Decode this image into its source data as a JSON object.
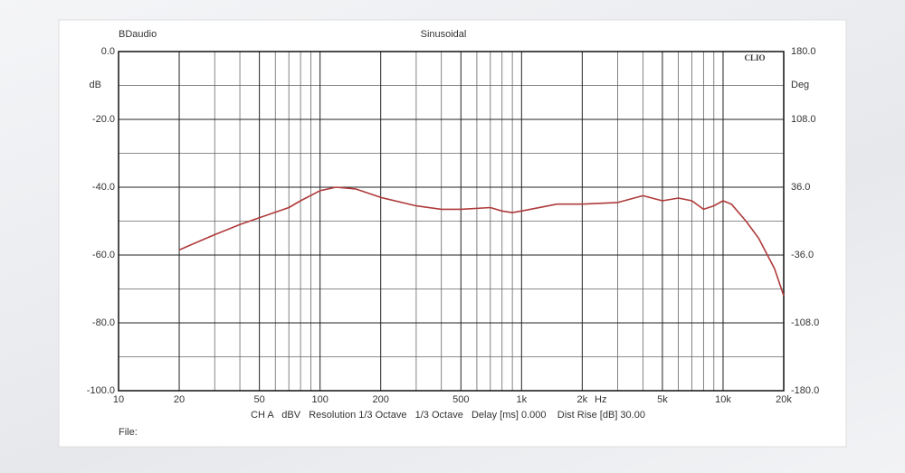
{
  "chart_data": {
    "type": "line",
    "title": "Sinusoidal",
    "brand": "BDaudio",
    "logo": "CLIO",
    "ylabel": "dB",
    "y2label": "Deg",
    "xlabel": "Hz",
    "footer": "CH A   dBV   Resolution 1/3 Octave   1/3 Octave   Delay [ms] 0.000    Dist Rise [dB] 30.00",
    "file_label": "File:",
    "xscale": "log",
    "xlim": [
      10,
      20000
    ],
    "xticks": [
      10,
      20,
      50,
      100,
      200,
      500,
      {
        "value": 1000,
        "label": "1k"
      },
      {
        "value": 2000,
        "label": "2k"
      },
      {
        "value": 5000,
        "label": "5k"
      },
      {
        "value": 10000,
        "label": "10k"
      },
      {
        "value": 20000,
        "label": "20k"
      }
    ],
    "xminor": [
      30,
      40,
      60,
      70,
      80,
      90,
      300,
      400,
      600,
      700,
      800,
      900,
      3000,
      4000,
      6000,
      7000,
      8000,
      9000
    ],
    "ylim": [
      -100,
      0
    ],
    "yticks": [
      {
        "value": -100,
        "label": "-100.0"
      },
      {
        "value": -80,
        "label": "-80.0"
      },
      {
        "value": -60,
        "label": "-60.0"
      },
      {
        "value": -40,
        "label": "-40.0"
      },
      {
        "value": -20,
        "label": "-20.0"
      },
      {
        "value": 0,
        "label": "0.0"
      }
    ],
    "yminor": [
      -90,
      -70,
      -50,
      -30,
      -10
    ],
    "y2lim": [
      -180,
      180
    ],
    "y2ticks": [
      {
        "value": -180,
        "label": "-180.0"
      },
      {
        "value": -108,
        "label": "-108.0"
      },
      {
        "value": -36,
        "label": "-36.0"
      },
      {
        "value": 36,
        "label": "36.0"
      },
      {
        "value": 108,
        "label": "108.0"
      },
      {
        "value": 180,
        "label": "180.0"
      }
    ],
    "grid": true,
    "series": [
      {
        "color": "#b03a3a",
        "x": [
          20,
          25,
          30,
          40,
          50,
          70,
          80,
          100,
          120,
          150,
          200,
          300,
          400,
          500,
          700,
          800,
          900,
          1000,
          1500,
          2000,
          3000,
          4000,
          5000,
          6000,
          7000,
          8000,
          9000,
          10000,
          11000,
          13000,
          15000,
          18000,
          20000
        ],
        "values": [
          -58.5,
          -56,
          -54,
          -51,
          -49,
          -46,
          -44,
          -41,
          -40,
          -40.5,
          -43,
          -45.5,
          -46.5,
          -46.5,
          -46,
          -47,
          -47.5,
          -47,
          -45,
          -45,
          -44.5,
          -42.5,
          -44,
          -43.2,
          -44,
          -46.5,
          -45.5,
          -44,
          -45,
          -50,
          -55,
          -64,
          -72
        ]
      }
    ]
  }
}
